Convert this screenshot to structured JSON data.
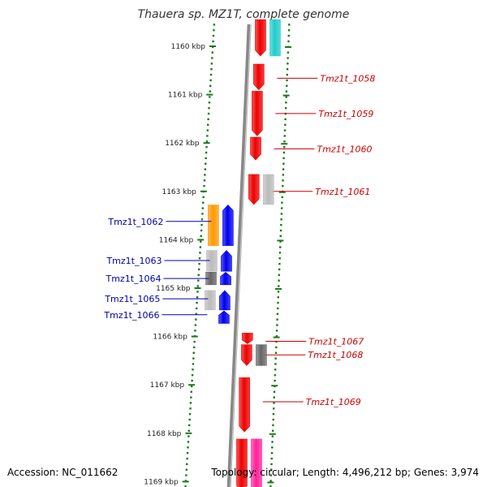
{
  "title": "Thauera sp. MZ1T, complete genome",
  "footer": {
    "accession": "Accession: NC_011662",
    "topology": "Topology: circular; Length: 4,496,212 bp; Genes: 3,974"
  },
  "colors": {
    "tick": "#1a7a1a",
    "backbone": "#888888",
    "forward_label": "#cc0000",
    "reverse_label": "#0000aa",
    "red": "#ee0000",
    "blue": "#0000ee",
    "cyan": "#22cccc",
    "orange": "#ff9900",
    "gray": "#bbbbbb",
    "darkgray": "#666666",
    "pink": "#ff2299"
  },
  "scale_ticks": [
    {
      "label": "1160 kbp",
      "pos": 1160.0
    },
    {
      "label": "1161 kbp",
      "pos": 1161.0
    },
    {
      "label": "1162 kbp",
      "pos": 1162.0
    },
    {
      "label": "1163 kbp",
      "pos": 1163.0
    },
    {
      "label": "1164 kbp",
      "pos": 1164.0
    },
    {
      "label": "1165 kbp",
      "pos": 1165.0
    },
    {
      "label": "1166 kbp",
      "pos": 1166.0
    },
    {
      "label": "1167 kbp",
      "pos": 1167.0
    },
    {
      "label": "1168 kbp",
      "pos": 1168.0
    },
    {
      "label": "1169 kbp",
      "pos": 1169.0
    }
  ],
  "genes": [
    {
      "id": "g_top_red",
      "strand": "+",
      "lane": 0,
      "start": 1159.45,
      "end": 1160.2,
      "color": "red"
    },
    {
      "id": "g_top_cyan",
      "strand": "+",
      "lane": 1,
      "start": 1159.45,
      "end": 1160.2,
      "color": "cyan"
    },
    {
      "id": "g_1058",
      "strand": "+",
      "lane": 0,
      "start": 1160.37,
      "end": 1160.9,
      "color": "red",
      "label": "Tmz1t_1058",
      "label_pos": 1160.66
    },
    {
      "id": "g_1059",
      "strand": "+",
      "lane": 0,
      "start": 1160.93,
      "end": 1161.85,
      "color": "red",
      "label": "Tmz1t_1059",
      "label_pos": 1161.39
    },
    {
      "id": "g_1060",
      "strand": "+",
      "lane": 0,
      "start": 1161.88,
      "end": 1162.35,
      "color": "red",
      "label": "Tmz1t_1060",
      "label_pos": 1162.12
    },
    {
      "id": "g_1061",
      "strand": "+",
      "lane": 0,
      "start": 1162.65,
      "end": 1163.27,
      "color": "red",
      "label": "Tmz1t_1061",
      "label_pos": 1163.0
    },
    {
      "id": "g_1061b",
      "strand": "+",
      "lane": 1,
      "start": 1162.65,
      "end": 1163.27,
      "color": "gray"
    },
    {
      "id": "g_1062_orange",
      "strand": "-",
      "lane": 1,
      "start": 1163.28,
      "end": 1164.12,
      "color": "orange"
    },
    {
      "id": "g_1062",
      "strand": "-",
      "lane": 0,
      "start": 1163.28,
      "end": 1164.12,
      "color": "blue",
      "label": "Tmz1t_1062",
      "label_pos": 1163.62
    },
    {
      "id": "g_1063_gray",
      "strand": "-",
      "lane": 1,
      "start": 1164.22,
      "end": 1164.65,
      "color": "gray"
    },
    {
      "id": "g_1063",
      "strand": "-",
      "lane": 0,
      "start": 1164.22,
      "end": 1164.65,
      "color": "blue",
      "label": "Tmz1t_1063",
      "label_pos": 1164.43
    },
    {
      "id": "g_1064_gray",
      "strand": "-",
      "lane": 1,
      "start": 1164.67,
      "end": 1164.93,
      "color": "darkgray"
    },
    {
      "id": "g_1064",
      "strand": "-",
      "lane": 0,
      "start": 1164.67,
      "end": 1164.93,
      "color": "blue",
      "label": "Tmz1t_1064",
      "label_pos": 1164.8
    },
    {
      "id": "g_1065_gray",
      "strand": "-",
      "lane": 1,
      "start": 1165.05,
      "end": 1165.45,
      "color": "gray"
    },
    {
      "id": "g_1065",
      "strand": "-",
      "lane": 0,
      "start": 1165.05,
      "end": 1165.45,
      "color": "blue",
      "label": "Tmz1t_1065",
      "label_pos": 1165.22
    },
    {
      "id": "g_1066",
      "strand": "-",
      "lane": 0,
      "start": 1165.47,
      "end": 1165.73,
      "color": "blue",
      "label": "Tmz1t_1066",
      "label_pos": 1165.55
    },
    {
      "id": "g_1067",
      "strand": "+",
      "lane": 0,
      "start": 1165.93,
      "end": 1166.15,
      "color": "red",
      "label": "Tmz1t_1067",
      "label_pos": 1166.1
    },
    {
      "id": "g_1068",
      "strand": "+",
      "lane": 0,
      "start": 1166.17,
      "end": 1166.6,
      "color": "red",
      "label": "Tmz1t_1068",
      "label_pos": 1166.38
    },
    {
      "id": "g_1068b",
      "strand": "+",
      "lane": 1,
      "start": 1166.17,
      "end": 1166.6,
      "color": "darkgray"
    },
    {
      "id": "g_1069",
      "strand": "+",
      "lane": 0,
      "start": 1166.85,
      "end": 1167.97,
      "color": "red",
      "label": "Tmz1t_1069",
      "label_pos": 1167.35
    },
    {
      "id": "g_bottom_red",
      "strand": "+",
      "lane": 0,
      "start": 1168.12,
      "end": 1169.2,
      "color": "red"
    },
    {
      "id": "g_bottom_pink",
      "strand": "+",
      "lane": 1,
      "start": 1168.12,
      "end": 1169.2,
      "color": "pink"
    }
  ]
}
